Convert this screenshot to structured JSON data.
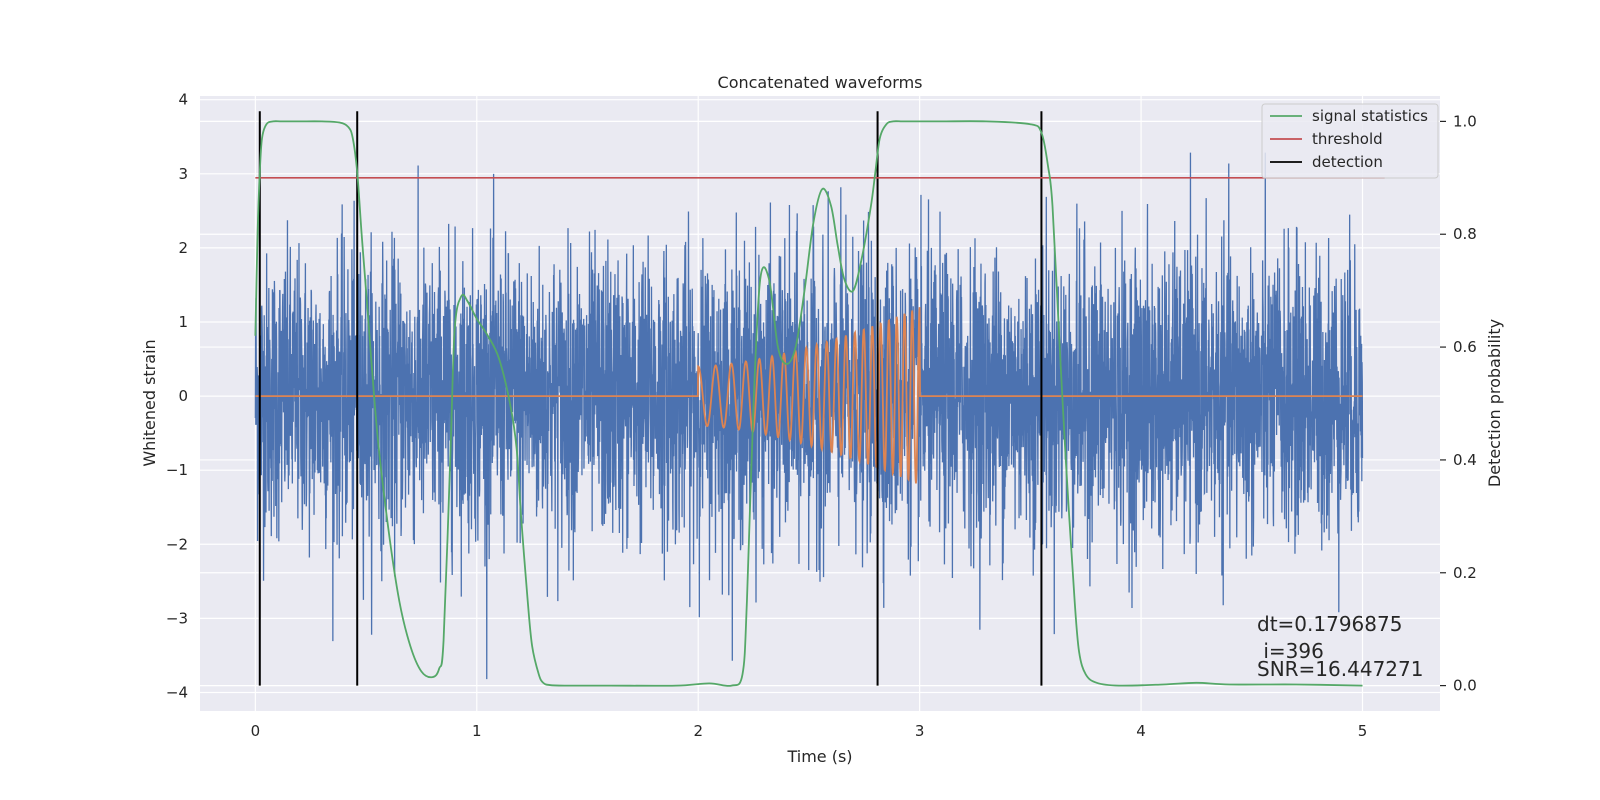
{
  "chart_data": {
    "type": "line",
    "title": "Concatenated waveforms",
    "xlabel": "Time (s)",
    "ylabel_left": "Whitened strain",
    "ylabel_right": "Detection probability",
    "xlim": [
      -0.25,
      5.35
    ],
    "ylim_left": [
      -4.25,
      4.05
    ],
    "ylim_right": [
      -0.045,
      1.045
    ],
    "xticks": [
      0,
      1,
      2,
      3,
      4,
      5
    ],
    "yticks_left": [
      -4,
      -3,
      -2,
      -1,
      0,
      1,
      2,
      3,
      4
    ],
    "yticks_right": [
      0.0,
      0.2,
      0.4,
      0.6,
      0.8,
      1.0
    ],
    "grid": true,
    "legend_placement": "top-right",
    "legend": [
      "signal statistics",
      "threshold",
      "detection"
    ],
    "colors": {
      "strain": "#4c72b0",
      "template": "#dd8452",
      "signal_statistics": "#55a868",
      "threshold": "#c44e52",
      "detection": "#000000",
      "background": "#eaeaf2"
    },
    "strain": {
      "x_range": [
        0,
        5
      ],
      "noise_sigma": 0.95,
      "peak_max": 3.65,
      "peak_min": -3.9
    },
    "template": {
      "x_range": [
        0,
        5
      ],
      "chirp_start": 2.0,
      "chirp_end": 3.0,
      "amp_start": 0.4,
      "amp_end": 1.2
    },
    "signal_statistics": {
      "x": [
        0,
        0.01,
        0.02,
        0.03,
        0.05,
        0.08,
        0.12,
        0.2,
        0.3,
        0.38,
        0.42,
        0.44,
        0.46,
        0.48,
        0.5,
        0.55,
        0.6,
        0.65,
        0.7,
        0.75,
        0.8,
        0.83,
        0.85,
        0.88,
        0.9,
        0.93,
        0.96,
        1.0,
        1.05,
        1.1,
        1.15,
        1.18,
        1.2,
        1.23,
        1.25,
        1.28,
        1.3,
        1.33,
        1.4,
        1.6,
        1.9,
        2.05,
        2.15,
        2.2,
        2.22,
        2.25,
        2.28,
        2.32,
        2.36,
        2.4,
        2.44,
        2.48,
        2.52,
        2.56,
        2.6,
        2.63,
        2.66,
        2.7,
        2.74,
        2.78,
        2.8,
        2.82,
        2.85,
        2.88,
        2.92,
        2.96,
        3.0,
        3.1,
        3.3,
        3.5,
        3.55,
        3.58,
        3.6,
        3.63,
        3.66,
        3.7,
        3.72,
        3.75,
        3.8,
        3.9,
        4.1,
        4.25,
        4.4,
        4.7,
        5.0
      ],
      "y": [
        0.62,
        0.8,
        0.91,
        0.97,
        0.995,
        1.0,
        1.0,
        1.0,
        1.0,
        0.998,
        0.99,
        0.97,
        0.91,
        0.8,
        0.7,
        0.45,
        0.28,
        0.15,
        0.07,
        0.025,
        0.015,
        0.03,
        0.08,
        0.4,
        0.63,
        0.69,
        0.68,
        0.65,
        0.62,
        0.58,
        0.5,
        0.42,
        0.3,
        0.15,
        0.07,
        0.02,
        0.005,
        0.001,
        0.0,
        0.0,
        0.0,
        0.004,
        0.0,
        0.02,
        0.15,
        0.5,
        0.72,
        0.72,
        0.6,
        0.57,
        0.6,
        0.7,
        0.82,
        0.88,
        0.85,
        0.78,
        0.72,
        0.7,
        0.76,
        0.85,
        0.91,
        0.97,
        0.995,
        1.0,
        1.0,
        1.0,
        1.0,
        1.0,
        1.0,
        0.995,
        0.98,
        0.92,
        0.85,
        0.62,
        0.4,
        0.15,
        0.06,
        0.02,
        0.005,
        0.0,
        0.002,
        0.005,
        0.002,
        0.002,
        0.0
      ]
    },
    "threshold": {
      "value": 0.9,
      "x_range": [
        0,
        5.1
      ]
    },
    "detections": [
      0.02,
      0.46,
      2.81,
      3.55
    ],
    "annotations": [
      "dt=0.1796875",
      " i=396",
      "SNR=16.447271"
    ]
  }
}
